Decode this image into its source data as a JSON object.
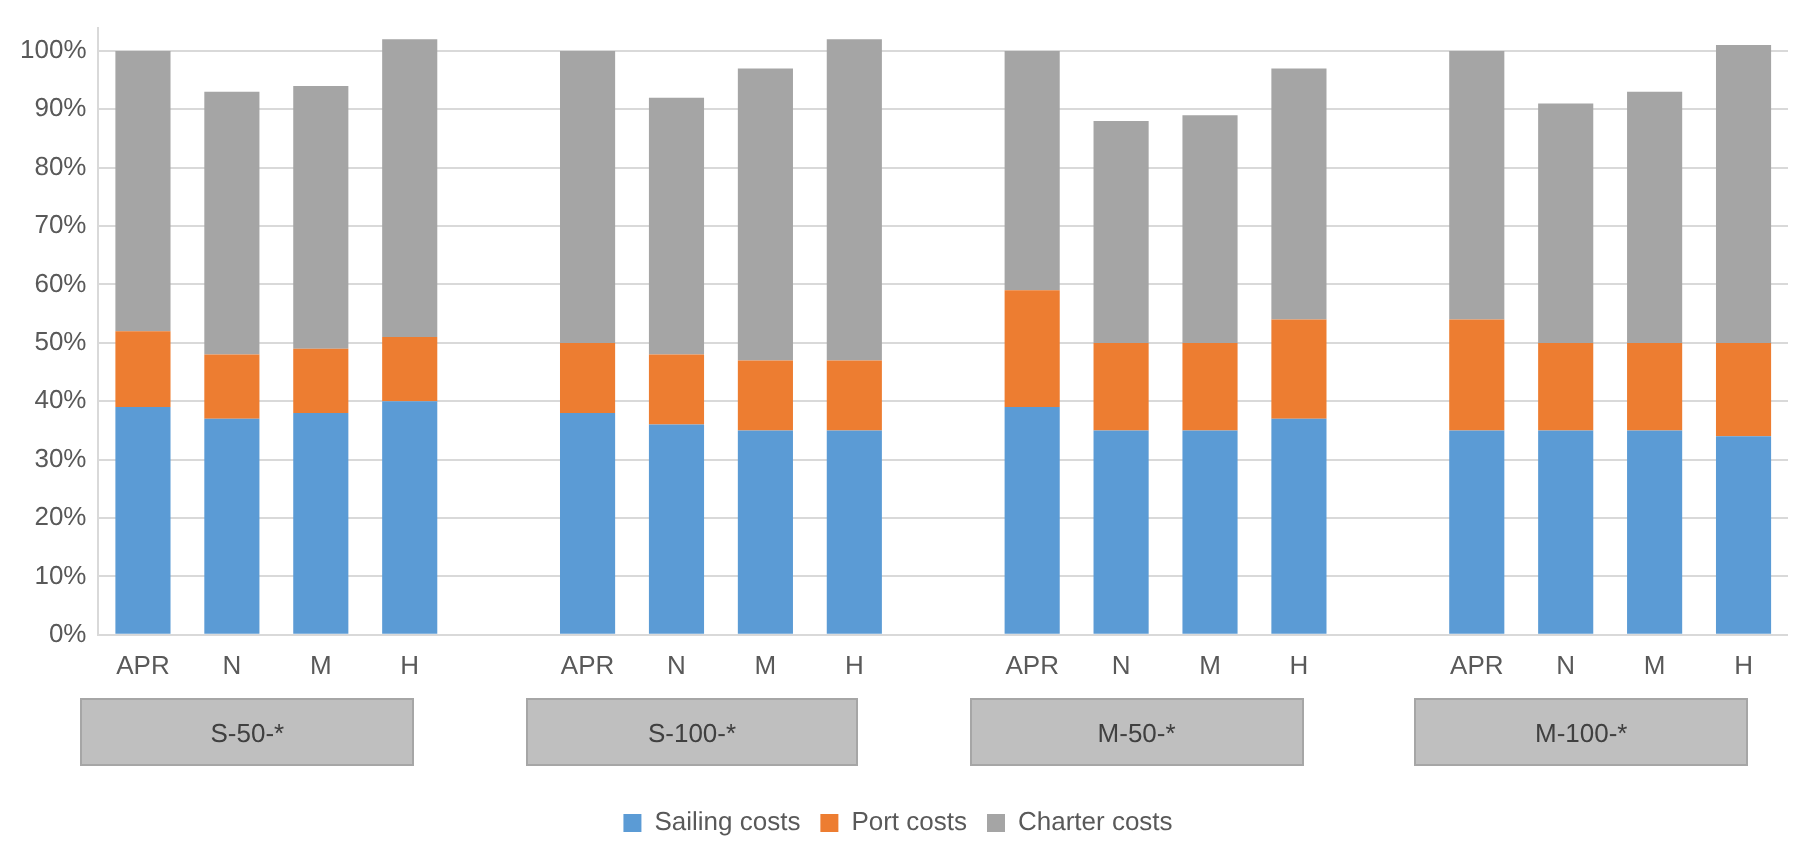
{
  "chart_data": {
    "type": "bar",
    "stacked": true,
    "categories": [
      "APR",
      "N",
      "M",
      "H",
      null,
      "APR",
      "N",
      "M",
      "H",
      null,
      "APR",
      "N",
      "M",
      "H",
      null,
      "APR",
      "N",
      "M",
      "H"
    ],
    "series": [
      {
        "name": "Sailing costs",
        "color": "#5b9bd5",
        "values": [
          39,
          37,
          38,
          40,
          null,
          38,
          36,
          35,
          35,
          null,
          39,
          35,
          35,
          37,
          null,
          35,
          35,
          35,
          34
        ]
      },
      {
        "name": "Port costs",
        "color": "#ed7d31",
        "values": [
          13,
          11,
          11,
          11,
          null,
          12,
          12,
          12,
          12,
          null,
          20,
          15,
          15,
          17,
          null,
          19,
          15,
          15,
          16
        ]
      },
      {
        "name": "Charter costs",
        "color": "#a5a5a5",
        "values": [
          48,
          45,
          45,
          51,
          null,
          50,
          44,
          50,
          55,
          null,
          41,
          38,
          39,
          43,
          null,
          46,
          41,
          43,
          51
        ]
      }
    ],
    "ylim": [
      0,
      104
    ],
    "yticks": [
      {
        "value": 0,
        "label": "0%"
      },
      {
        "value": 10,
        "label": "10%"
      },
      {
        "value": 20,
        "label": "20%"
      },
      {
        "value": 30,
        "label": "30%"
      },
      {
        "value": 40,
        "label": "40%"
      },
      {
        "value": 50,
        "label": "50%"
      },
      {
        "value": 60,
        "label": "60%"
      },
      {
        "value": 70,
        "label": "70%"
      },
      {
        "value": 80,
        "label": "80%"
      },
      {
        "value": 90,
        "label": "90%"
      },
      {
        "value": 100,
        "label": "100%"
      }
    ],
    "grid": "y",
    "legend": "bottom",
    "annotations": [
      "S-50-*",
      "S-100-*",
      "M-50-*",
      "M-100-*"
    ]
  }
}
